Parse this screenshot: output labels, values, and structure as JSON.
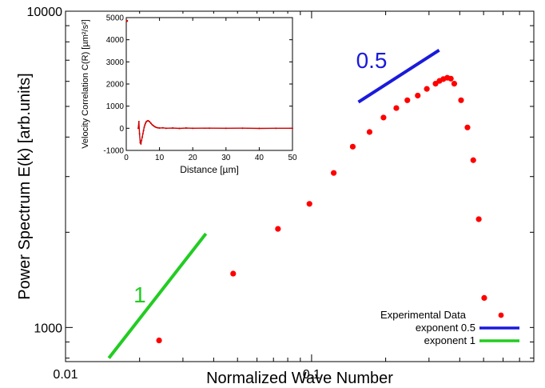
{
  "chart_data": [
    {
      "type": "scatter",
      "xscale": "log",
      "yscale": "log",
      "xlim": [
        0.01,
        0.8
      ],
      "ylim": [
        780,
        10000
      ],
      "xlabel": "Normalized Wave Number",
      "ylabel": "Power Spectrum E(k) [arb.units]",
      "x_ticks": [
        {
          "value": 0.01,
          "label": "0.01"
        },
        {
          "value": 0.1,
          "label": "0.1"
        }
      ],
      "y_ticks": [
        {
          "value": 1000,
          "label": "1000"
        },
        {
          "value": 10000,
          "label": "10000"
        }
      ],
      "series": [
        {
          "name": "Experimental Data",
          "kind": "points",
          "color": "#ff0000",
          "x": [
            0.024,
            0.048,
            0.073,
            0.098,
            0.123,
            0.147,
            0.172,
            0.196,
            0.221,
            0.245,
            0.27,
            0.294,
            0.319,
            0.331,
            0.343,
            0.356,
            0.368,
            0.38,
            0.405,
            0.43,
            0.454,
            0.478,
            0.503
          ],
          "y": [
            910,
            1480,
            2050,
            2460,
            3080,
            3730,
            4150,
            4610,
            4940,
            5230,
            5410,
            5680,
            5900,
            6020,
            6100,
            6160,
            6120,
            5900,
            5230,
            4290,
            3380,
            2200,
            1240
          ]
        },
        {
          "name": "exponent 0.5",
          "kind": "line",
          "color": "#1a1adb",
          "x": [
            0.155,
            0.33
          ],
          "y": [
            5160,
            7530
          ],
          "annotation": "0.5"
        },
        {
          "name": "exponent 1",
          "kind": "line",
          "color": "#22cc22",
          "x": [
            0.015,
            0.0372
          ],
          "y": [
            800,
            1980
          ],
          "annotation": "1"
        }
      ],
      "legend": {
        "position": "bottom-right"
      }
    },
    {
      "type": "scatter",
      "inset": true,
      "xlim": [
        0,
        50
      ],
      "ylim": [
        -1000,
        5000
      ],
      "xlabel": "Distance [µm]",
      "ylabel": "Velocity Correlation C(R) [µm²/s²]",
      "x_ticks": [
        0,
        10,
        20,
        30,
        40,
        50
      ],
      "y_ticks": [
        -1000,
        0,
        1000,
        2000,
        3000,
        4000,
        5000
      ],
      "color": "#cc0000",
      "x": [
        0.2,
        3.6,
        3.8,
        4.0,
        4.2,
        4.4,
        4.6,
        4.8,
        5.0,
        5.2,
        5.4,
        5.6,
        5.8,
        6.0,
        6.3,
        6.6,
        7.0,
        7.4,
        7.8,
        8.2,
        8.6,
        9.0,
        9.5,
        10,
        11,
        12,
        14,
        16,
        18,
        20,
        25,
        30,
        35,
        40,
        45,
        50
      ],
      "y": [
        4850,
        0,
        300,
        -250,
        -650,
        -700,
        -550,
        -400,
        -250,
        -100,
        50,
        150,
        230,
        290,
        330,
        340,
        300,
        230,
        160,
        110,
        70,
        40,
        20,
        10,
        20,
        0,
        10,
        -5,
        10,
        0,
        5,
        0,
        5,
        -5,
        0,
        0
      ]
    }
  ]
}
